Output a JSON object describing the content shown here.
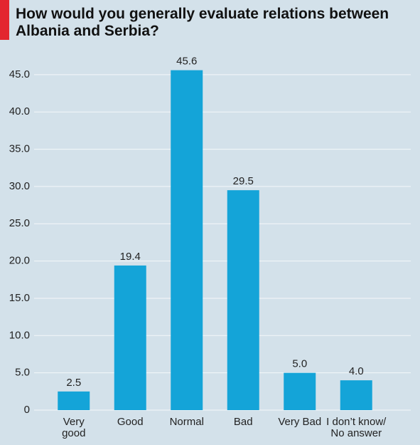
{
  "chart_data": {
    "type": "bar",
    "title": "How would you generally evaluate relations between Albania and Serbia?",
    "categories": [
      "Very good",
      "Good",
      "Normal",
      "Bad",
      "Very Bad",
      "I don’t know/ No answer"
    ],
    "values": [
      2.5,
      19.4,
      45.6,
      29.5,
      5,
      4
    ],
    "value_labels": [
      "2.5",
      "19.4",
      "45.6",
      "29.5",
      "5.0",
      "4.0"
    ],
    "color": "#14a4d8",
    "ylim": [
      0,
      49
    ],
    "yticks": [
      0,
      {
        "value": 5,
        "label": "5.0"
      },
      {
        "value": 10,
        "label": "10.0"
      },
      {
        "value": 15,
        "label": "15.0"
      },
      {
        "value": 20,
        "label": "20.0"
      },
      {
        "value": 25,
        "label": "25.0"
      },
      {
        "value": 30,
        "label": "30.0"
      },
      {
        "value": 35,
        "label": "35.0"
      },
      {
        "value": 40,
        "label": "40.0"
      },
      {
        "value": 45,
        "label": "45.0"
      }
    ],
    "grid": true
  }
}
